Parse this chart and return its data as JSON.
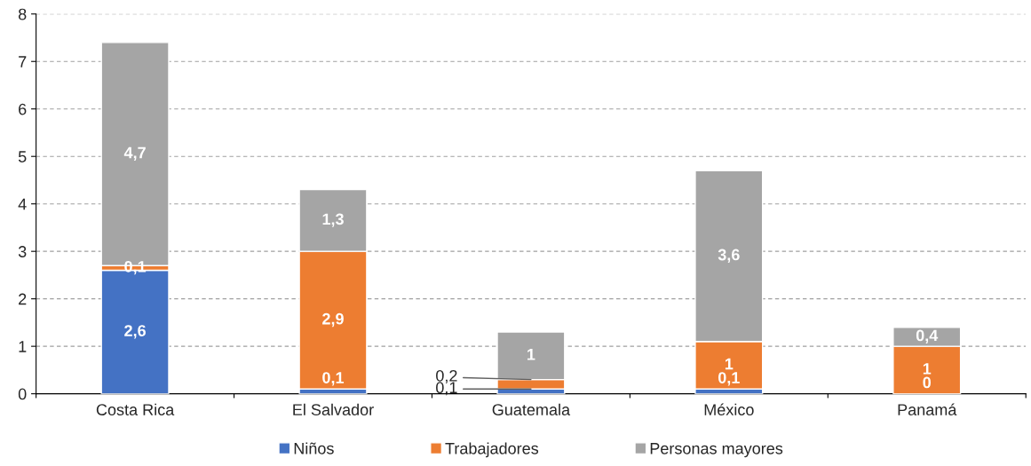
{
  "chart_data": {
    "type": "bar",
    "stacked": true,
    "categories": [
      "Costa Rica",
      "El Salvador",
      "Guatemala",
      "México",
      "Panamá"
    ],
    "series": [
      {
        "name": "Niños",
        "color": "#4472c4",
        "values": [
          2.6,
          0.1,
          0.1,
          0.1,
          0
        ],
        "value_labels": [
          "2,6",
          "0,1",
          null,
          "0,1",
          "0"
        ]
      },
      {
        "name": "Trabajadores",
        "color": "#ed7d31",
        "values": [
          0.1,
          2.9,
          0.2,
          1,
          1
        ],
        "value_labels": [
          "0,1",
          "2,9",
          null,
          "1",
          "1"
        ]
      },
      {
        "name": "Personas mayores",
        "color": "#a5a5a5",
        "values": [
          4.7,
          1.3,
          1,
          3.6,
          0.4
        ],
        "value_labels": [
          "4,7",
          "1,3",
          "1",
          "3,6",
          "0,4"
        ]
      }
    ],
    "annotations": [
      {
        "text": "0,1",
        "x": "Guatemala",
        "y": 0.1
      },
      {
        "text": "0,2",
        "x": "Guatemala",
        "y": 0.3
      }
    ],
    "ylim": [
      0,
      8
    ],
    "yticks": [
      0,
      1,
      2,
      3,
      4,
      5,
      6,
      7,
      8
    ],
    "grid": "y",
    "legend": "bottom"
  }
}
